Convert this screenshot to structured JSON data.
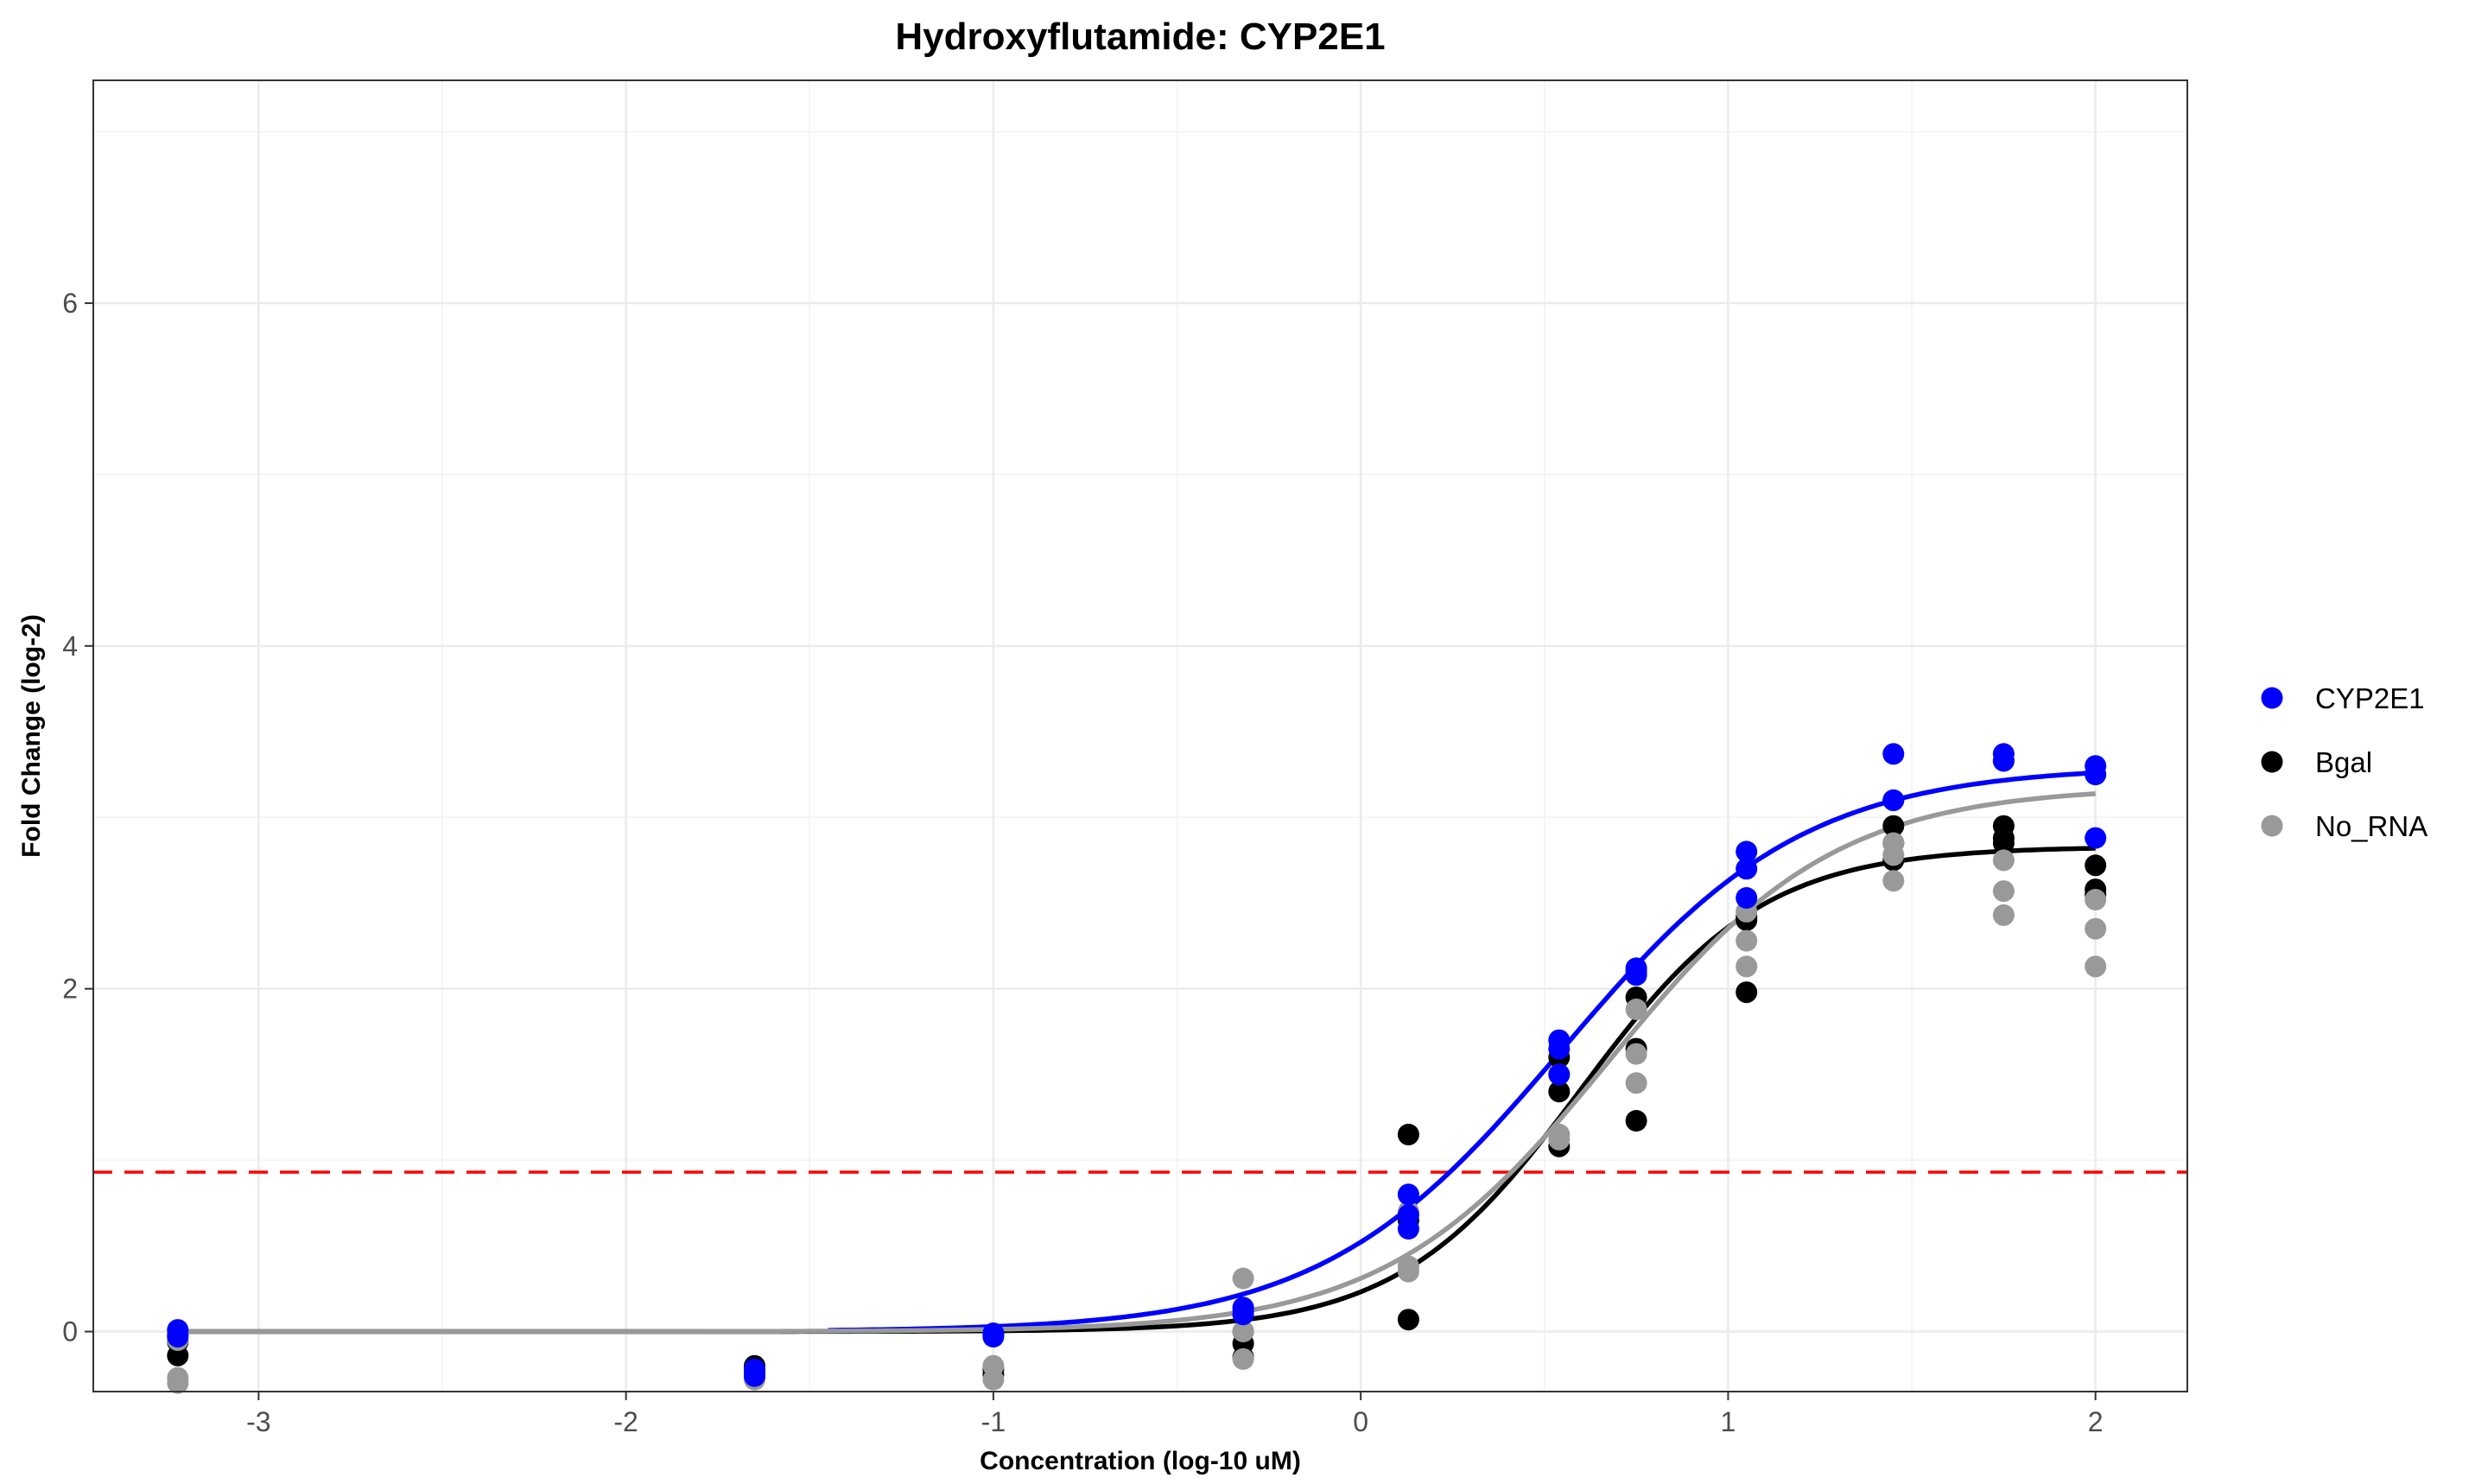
{
  "chart_data": {
    "type": "scatter",
    "title": "Hydroxyflutamide: CYP2E1",
    "xlabel": "Concentration (log-10 uM)",
    "ylabel": "Fold Change (log-2)",
    "xlim": [
      -3.45,
      2.25
    ],
    "ylim": [
      -0.35,
      7.3
    ],
    "x_ticks": [
      -3,
      -2,
      -1,
      0,
      1,
      2
    ],
    "x_tick_labels": [
      "-3",
      "-2",
      "-1",
      "0",
      "1",
      "2"
    ],
    "y_ticks": [
      0,
      2,
      4,
      6
    ],
    "y_tick_labels": [
      "0",
      "2",
      "4",
      "6"
    ],
    "grid": true,
    "legend_position": "right",
    "threshold_line": {
      "y": 0.93,
      "color": "#ff0000",
      "style": "dashed"
    },
    "series": [
      {
        "name": "CYP2E1",
        "color": "#0000ff",
        "points": [
          [
            -3.22,
            0.01
          ],
          [
            -3.22,
            -0.02
          ],
          [
            -3.22,
            -0.03
          ],
          [
            -1.65,
            -0.22
          ],
          [
            -1.65,
            -0.24
          ],
          [
            -1.65,
            -0.26
          ],
          [
            -1.0,
            -0.01
          ],
          [
            -1.0,
            -0.02
          ],
          [
            -1.0,
            -0.03
          ],
          [
            -0.32,
            0.12
          ],
          [
            -0.32,
            0.1
          ],
          [
            -0.32,
            0.14
          ],
          [
            0.13,
            0.8
          ],
          [
            0.13,
            0.6
          ],
          [
            0.13,
            0.68
          ],
          [
            0.54,
            1.7
          ],
          [
            0.54,
            1.65
          ],
          [
            0.54,
            1.5
          ],
          [
            0.75,
            2.12
          ],
          [
            0.75,
            2.1
          ],
          [
            0.75,
            2.08
          ],
          [
            1.05,
            2.8
          ],
          [
            1.05,
            2.7
          ],
          [
            1.05,
            2.53
          ],
          [
            1.45,
            3.37
          ],
          [
            1.45,
            3.1
          ],
          [
            1.45,
            3.1
          ],
          [
            1.75,
            3.37
          ],
          [
            1.75,
            3.33
          ],
          [
            1.75,
            3.33
          ],
          [
            2.0,
            3.3
          ],
          [
            2.0,
            3.25
          ],
          [
            2.0,
            2.88
          ]
        ],
        "fit": {
          "bottom": 0.0,
          "top": 3.3,
          "ec50": 0.55,
          "hill": 1.32
        }
      },
      {
        "name": "Bgal",
        "color": "#000000",
        "points": [
          [
            -3.22,
            -0.06
          ],
          [
            -3.22,
            -0.14
          ],
          [
            -1.65,
            -0.2
          ],
          [
            -1.65,
            -0.24
          ],
          [
            -1.0,
            -0.25
          ],
          [
            -1.0,
            -0.22
          ],
          [
            -0.32,
            -0.15
          ],
          [
            -0.32,
            -0.07
          ],
          [
            -0.32,
            0.0
          ],
          [
            0.13,
            1.15
          ],
          [
            0.13,
            0.07
          ],
          [
            0.13,
            0.65
          ],
          [
            0.54,
            1.6
          ],
          [
            0.54,
            1.4
          ],
          [
            0.54,
            1.08
          ],
          [
            0.75,
            1.95
          ],
          [
            0.75,
            1.65
          ],
          [
            0.75,
            1.23
          ],
          [
            1.05,
            2.42
          ],
          [
            1.05,
            1.98
          ],
          [
            1.05,
            2.4
          ],
          [
            1.45,
            2.95
          ],
          [
            1.45,
            2.75
          ],
          [
            1.45,
            2.85
          ],
          [
            1.75,
            2.95
          ],
          [
            1.75,
            2.88
          ],
          [
            1.75,
            2.85
          ],
          [
            2.0,
            2.72
          ],
          [
            2.0,
            2.58
          ],
          [
            2.0,
            2.55
          ]
        ],
        "fit": {
          "bottom": 0.0,
          "top": 2.83,
          "ec50": 0.6,
          "hill": 1.75
        }
      },
      {
        "name": "No_RNA",
        "color": "#999999",
        "points": [
          [
            -3.22,
            -0.27
          ],
          [
            -3.22,
            -0.3
          ],
          [
            -3.22,
            -0.05
          ],
          [
            -1.65,
            -0.27
          ],
          [
            -1.65,
            -0.28
          ],
          [
            -1.0,
            -0.2
          ],
          [
            -1.0,
            -0.28
          ],
          [
            -0.32,
            0.31
          ],
          [
            -0.32,
            0.0
          ],
          [
            -0.32,
            -0.16
          ],
          [
            0.13,
            0.7
          ],
          [
            0.13,
            0.35
          ],
          [
            0.13,
            0.38
          ],
          [
            0.54,
            1.5
          ],
          [
            0.54,
            1.15
          ],
          [
            0.54,
            1.12
          ],
          [
            0.75,
            1.88
          ],
          [
            0.75,
            1.62
          ],
          [
            0.75,
            1.45
          ],
          [
            1.05,
            2.45
          ],
          [
            1.05,
            2.28
          ],
          [
            1.05,
            2.13
          ],
          [
            1.45,
            2.85
          ],
          [
            1.45,
            2.78
          ],
          [
            1.45,
            2.63
          ],
          [
            1.75,
            2.75
          ],
          [
            1.75,
            2.57
          ],
          [
            1.75,
            2.43
          ],
          [
            2.0,
            2.52
          ],
          [
            2.0,
            2.35
          ],
          [
            2.0,
            2.13
          ]
        ],
        "fit": {
          "bottom": 0.0,
          "top": 3.18,
          "ec50": 0.68,
          "hill": 1.42
        }
      }
    ]
  }
}
